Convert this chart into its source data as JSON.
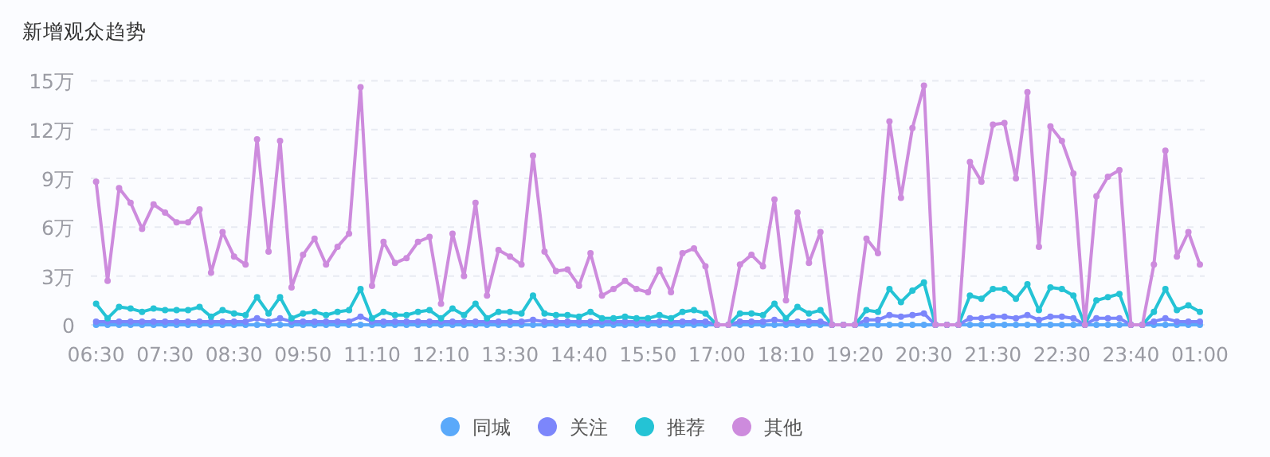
{
  "chart_data": {
    "type": "line",
    "title": "新增观众趋势",
    "categories": [
      "06:30",
      null,
      null,
      null,
      null,
      null,
      "07:30",
      null,
      null,
      null,
      null,
      null,
      "08:30",
      null,
      null,
      null,
      null,
      null,
      "09:50",
      null,
      null,
      null,
      null,
      null,
      "11:10",
      null,
      null,
      null,
      null,
      null,
      "12:10",
      null,
      null,
      null,
      null,
      null,
      "13:30",
      null,
      null,
      null,
      null,
      null,
      "14:40",
      null,
      null,
      null,
      null,
      null,
      "15:50",
      null,
      null,
      null,
      null,
      null,
      "17:00",
      null,
      null,
      null,
      null,
      null,
      "18:10",
      null,
      null,
      null,
      null,
      null,
      "19:20",
      null,
      null,
      null,
      null,
      null,
      "20:30",
      null,
      null,
      null,
      null,
      null,
      "21:30",
      null,
      null,
      null,
      null,
      null,
      "22:30",
      null,
      null,
      null,
      null,
      null,
      "23:40",
      null,
      null,
      null,
      null,
      null,
      "01:00"
    ],
    "series": [
      {
        "name": "同城",
        "color": "#5aa9fa",
        "values": [
          0,
          0,
          0,
          0,
          0,
          0,
          0,
          0,
          0,
          0,
          0,
          0,
          0,
          0,
          0,
          0,
          0,
          0,
          0,
          0,
          0,
          0,
          0,
          0,
          0,
          0,
          0,
          0,
          0,
          0,
          0,
          0,
          0,
          0,
          0,
          0,
          0,
          0,
          0,
          0,
          0,
          0,
          0,
          0,
          0,
          0,
          0,
          0,
          0,
          0,
          0,
          0,
          0,
          0,
          0,
          0,
          0,
          0,
          0,
          0,
          0,
          0,
          0,
          0,
          0,
          0,
          0,
          0,
          0,
          0,
          0,
          0,
          0,
          0,
          0,
          0,
          0,
          0,
          0,
          0,
          0,
          0,
          0,
          0,
          0,
          0,
          0,
          0,
          0,
          0,
          0,
          0,
          0,
          0,
          0,
          0,
          0
        ]
      },
      {
        "name": "关注",
        "color": "#7c86fb",
        "values": [
          0.2,
          0.2,
          0.2,
          0.2,
          0.2,
          0.2,
          0.2,
          0.2,
          0.2,
          0.2,
          0.2,
          0.2,
          0.2,
          0.2,
          0.4,
          0.2,
          0.4,
          0.2,
          0.2,
          0.2,
          0.2,
          0.2,
          0.2,
          0.5,
          0.2,
          0.2,
          0.2,
          0.2,
          0.2,
          0.2,
          0.2,
          0.2,
          0.2,
          0.2,
          0.2,
          0.2,
          0.2,
          0.2,
          0.3,
          0.2,
          0.2,
          0.2,
          0.2,
          0.2,
          0.2,
          0.2,
          0.2,
          0.2,
          0.2,
          0.2,
          0.2,
          0.2,
          0.2,
          0.2,
          0,
          0,
          0.2,
          0.2,
          0.2,
          0.3,
          0.2,
          0.2,
          0.2,
          0.2,
          0,
          0,
          0,
          0.3,
          0.3,
          0.6,
          0.5,
          0.6,
          0.7,
          0,
          0,
          0,
          0.4,
          0.4,
          0.5,
          0.5,
          0.4,
          0.6,
          0.3,
          0.5,
          0.5,
          0.4,
          0,
          0.4,
          0.4,
          0.4,
          0,
          0,
          0.2,
          0.4,
          0.2,
          0.2,
          0.2
        ]
      },
      {
        "name": "推荐",
        "color": "#24c3d5",
        "values": [
          1.3,
          0.4,
          1.1,
          1.0,
          0.8,
          1.0,
          0.9,
          0.9,
          0.9,
          1.1,
          0.5,
          0.9,
          0.7,
          0.6,
          1.7,
          0.7,
          1.7,
          0.4,
          0.7,
          0.8,
          0.6,
          0.8,
          0.9,
          2.2,
          0.4,
          0.8,
          0.6,
          0.6,
          0.8,
          0.9,
          0.4,
          1.0,
          0.6,
          1.3,
          0.4,
          0.8,
          0.8,
          0.7,
          1.8,
          0.7,
          0.6,
          0.6,
          0.5,
          0.8,
          0.4,
          0.4,
          0.5,
          0.4,
          0.4,
          0.6,
          0.4,
          0.8,
          0.9,
          0.7,
          0,
          0,
          0.7,
          0.7,
          0.6,
          1.3,
          0.4,
          1.1,
          0.7,
          0.9,
          0,
          0,
          0,
          0.9,
          0.8,
          2.2,
          1.4,
          2.1,
          2.6,
          0,
          0,
          0,
          1.8,
          1.6,
          2.2,
          2.2,
          1.6,
          2.5,
          0.9,
          2.3,
          2.2,
          1.8,
          0,
          1.5,
          1.7,
          1.9,
          0,
          0,
          0.8,
          2.2,
          0.9,
          1.2,
          0.8
        ]
      },
      {
        "name": "其他",
        "color": "#cd8bdd",
        "values": [
          8.8,
          2.7,
          8.4,
          7.5,
          5.9,
          7.4,
          6.9,
          6.3,
          6.3,
          7.1,
          3.2,
          5.7,
          4.2,
          3.7,
          11.4,
          4.5,
          11.3,
          2.3,
          4.3,
          5.3,
          3.7,
          4.8,
          5.6,
          14.6,
          2.4,
          5.1,
          3.8,
          4.1,
          5.1,
          5.4,
          1.3,
          5.6,
          3.0,
          7.5,
          1.8,
          4.6,
          4.2,
          3.7,
          10.4,
          4.5,
          3.3,
          3.4,
          2.4,
          4.4,
          1.8,
          2.2,
          2.7,
          2.2,
          2.0,
          3.4,
          2.0,
          4.4,
          4.7,
          3.6,
          0,
          0,
          3.7,
          4.3,
          3.6,
          7.7,
          1.5,
          6.9,
          3.8,
          5.7,
          0,
          0,
          0,
          5.3,
          4.4,
          12.5,
          7.8,
          12.1,
          14.7,
          0,
          0,
          0,
          10.0,
          8.8,
          12.3,
          12.4,
          9.0,
          14.3,
          4.8,
          12.2,
          11.3,
          9.3,
          0,
          7.9,
          9.1,
          9.5,
          0,
          0,
          3.7,
          10.7,
          4.2,
          5.7,
          3.7
        ]
      }
    ],
    "ylim": [
      0,
      15
    ],
    "yticks": [
      {
        "value": 0,
        "label": "0"
      },
      {
        "value": 3,
        "label": "3万"
      },
      {
        "value": 6,
        "label": "6万"
      },
      {
        "value": 9,
        "label": "9万"
      },
      {
        "value": 12,
        "label": "12万"
      },
      {
        "value": 15,
        "label": "15万"
      }
    ],
    "grid": "y",
    "legend": "bottom",
    "marker": "circle",
    "line_style": "solid"
  }
}
